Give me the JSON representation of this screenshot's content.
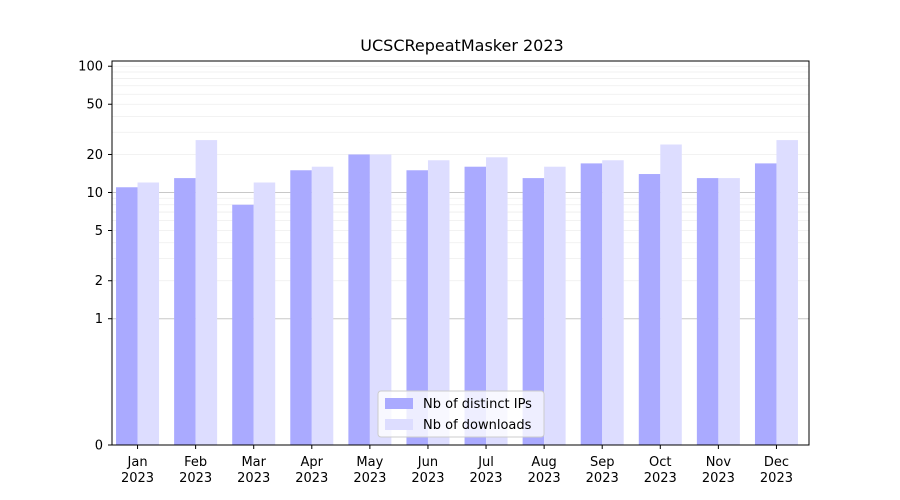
{
  "chart_data": {
    "type": "bar",
    "title": "UCSCRepeatMasker 2023",
    "xlabel": "",
    "ylabel": "",
    "y_scale": "symlog",
    "ylim": [
      0,
      110
    ],
    "y_ticks": [
      0,
      1,
      2,
      5,
      10,
      20,
      50,
      100
    ],
    "grid": true,
    "legend_position": "bottom-center",
    "categories": [
      [
        "Jan",
        "2023"
      ],
      [
        "Feb",
        "2023"
      ],
      [
        "Mar",
        "2023"
      ],
      [
        "Apr",
        "2023"
      ],
      [
        "May",
        "2023"
      ],
      [
        "Jun",
        "2023"
      ],
      [
        "Jul",
        "2023"
      ],
      [
        "Aug",
        "2023"
      ],
      [
        "Sep",
        "2023"
      ],
      [
        "Oct",
        "2023"
      ],
      [
        "Nov",
        "2023"
      ],
      [
        "Dec",
        "2023"
      ]
    ],
    "series": [
      {
        "name": "Nb of distinct IPs",
        "color": "#aaaaff",
        "values": [
          11,
          13,
          8,
          15,
          20,
          15,
          16,
          13,
          17,
          14,
          13,
          17
        ]
      },
      {
        "name": "Nb of downloads",
        "color": "#ddddff",
        "values": [
          12,
          26,
          12,
          16,
          20,
          18,
          19,
          16,
          18,
          24,
          13,
          26
        ]
      }
    ]
  }
}
